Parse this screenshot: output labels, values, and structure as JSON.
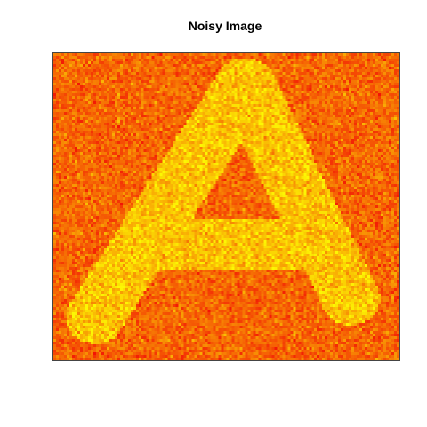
{
  "figure": {
    "title": "Noisy Image"
  },
  "colors": {
    "background": "#f56a10",
    "foreground": "#f5d51a",
    "noise_low": "#f20f05",
    "noise_high": "#fcf703"
  },
  "image": {
    "letter_shape": "A"
  }
}
